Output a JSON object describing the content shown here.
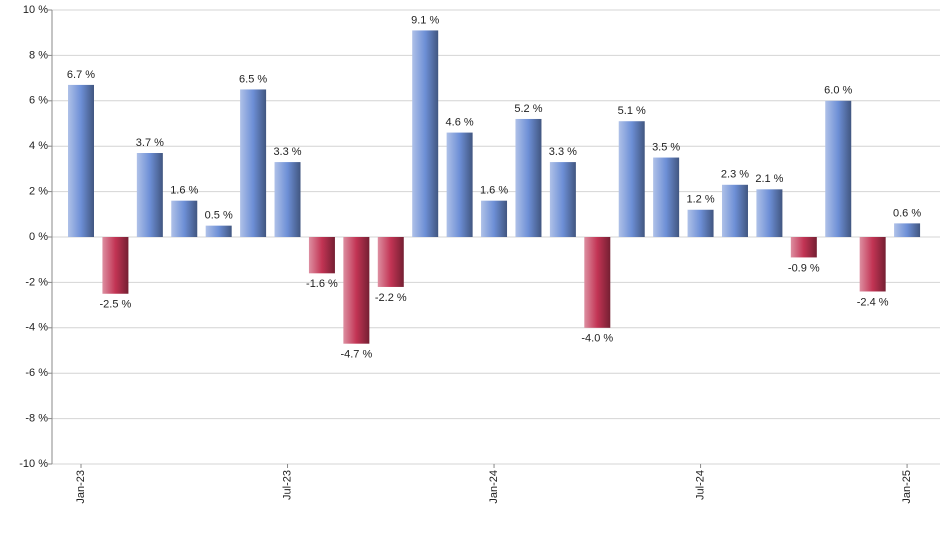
{
  "chart_data": {
    "type": "bar",
    "categories": [
      "Jan-23",
      null,
      null,
      null,
      null,
      null,
      "Jul-23",
      null,
      null,
      null,
      null,
      null,
      "Jan-24",
      null,
      null,
      null,
      null,
      null,
      "Jul-24",
      null,
      null,
      null,
      null,
      null,
      "Jan-25"
    ],
    "values": [
      6.7,
      -2.5,
      3.7,
      1.6,
      0.5,
      6.5,
      3.3,
      -1.6,
      -4.7,
      -2.2,
      9.1,
      4.6,
      1.6,
      5.2,
      3.3,
      -4.0,
      5.1,
      3.5,
      1.2,
      2.3,
      2.1,
      -0.9,
      6.0,
      -2.4,
      0.6
    ],
    "value_labels": [
      "6.7 %",
      "-2.5 %",
      "3.7 %",
      "1.6 %",
      "0.5 %",
      "6.5 %",
      "3.3 %",
      "-1.6 %",
      "-4.7 %",
      "-2.2 %",
      "9.1 %",
      "4.6 %",
      "1.6 %",
      "5.2 %",
      "3.3 %",
      "-4.0 %",
      "5.1 %",
      "3.5 %",
      "1.2 %",
      "2.3 %",
      "2.1 %",
      "-0.9 %",
      "6.0 %",
      "-2.4 %",
      "0.6 %"
    ],
    "positive_color": "#6d8fd6",
    "negative_color": "#c23454",
    "ylim": [
      -10,
      10
    ],
    "yticks": [
      {
        "value": -10,
        "label": "-10 %"
      },
      {
        "value": -8,
        "label": "-8 %"
      },
      {
        "value": -6,
        "label": "-6 %"
      },
      {
        "value": -4,
        "label": "-4 %"
      },
      {
        "value": -2,
        "label": "-2 %"
      },
      {
        "value": 0,
        "label": "0 %"
      },
      {
        "value": 2,
        "label": "2 %"
      },
      {
        "value": 4,
        "label": "4 %"
      },
      {
        "value": 6,
        "label": "6 %"
      },
      {
        "value": 8,
        "label": "8 %"
      },
      {
        "value": 10,
        "label": "10 %"
      }
    ],
    "grid": true
  }
}
